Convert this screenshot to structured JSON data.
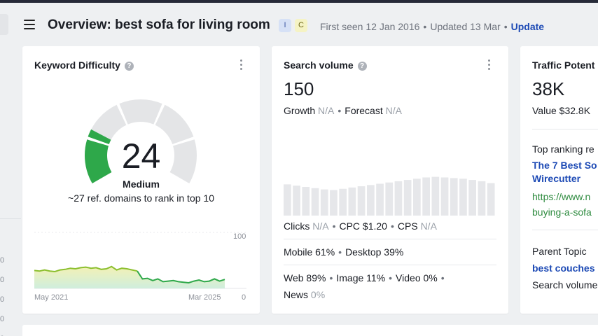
{
  "header": {
    "title": "Overview: best sofa for living room",
    "intent_badges": [
      "I",
      "C"
    ],
    "first_seen": "First seen 12 Jan 2016",
    "updated": "Updated 13 Mar",
    "update_link": "Update"
  },
  "left_panel": {
    "ticks": [
      "0",
      "0",
      "0",
      "0",
      "0"
    ]
  },
  "keyword_difficulty": {
    "title": "Keyword Difficulty",
    "value": "24",
    "score": 24,
    "label": "Medium",
    "description": "~27 ref. domains to rank in top 10",
    "gauge_fill_color": "#2ea84a",
    "trend": {
      "y_max_label": "100",
      "y_min_label": "0",
      "x_start_label": "May 2021",
      "x_end_label": "Mar 2025",
      "values": [
        32,
        31,
        33,
        31,
        30,
        33,
        34,
        36,
        35,
        37,
        38,
        36,
        37,
        34,
        35,
        39,
        33,
        36,
        35,
        33,
        31,
        17,
        18,
        14,
        17,
        12,
        13,
        14,
        12,
        11,
        10,
        13,
        15,
        12,
        13,
        17,
        13,
        16
      ]
    }
  },
  "search_volume": {
    "title": "Search volume",
    "value": "150",
    "growth_label": "Growth",
    "growth_value": "N/A",
    "forecast_label": "Forecast",
    "forecast_value": "N/A",
    "monthly_bars": [
      74,
      72,
      70,
      68,
      66,
      65,
      67,
      69,
      71,
      73,
      75,
      77,
      79,
      81,
      83,
      85,
      86,
      85,
      84,
      83,
      81,
      79,
      76
    ],
    "clicks_label": "Clicks",
    "clicks_value": "N/A",
    "cpc": "CPC $1.20",
    "cps_label": "CPS",
    "cps_value": "N/A",
    "mobile": "Mobile 61%",
    "desktop": "Desktop 39%",
    "web": "Web 89%",
    "image": "Image 11%",
    "video": "Video 0%",
    "news_label": "News",
    "news_value": "0%"
  },
  "traffic_potential": {
    "title": "Traffic Potent",
    "value": "38K",
    "traffic_value": "Value $32.8K",
    "top_ranking_label": "Top ranking re",
    "top_result_title_line1": "The 7 Best So",
    "top_result_title_line2": "Wirecutter",
    "top_result_url_line1": "https://www.n",
    "top_result_url_line2": "buying-a-sofa",
    "parent_topic_label": "Parent Topic",
    "parent_topic_value": "best couches",
    "search_volume_label": "Search volume"
  }
}
